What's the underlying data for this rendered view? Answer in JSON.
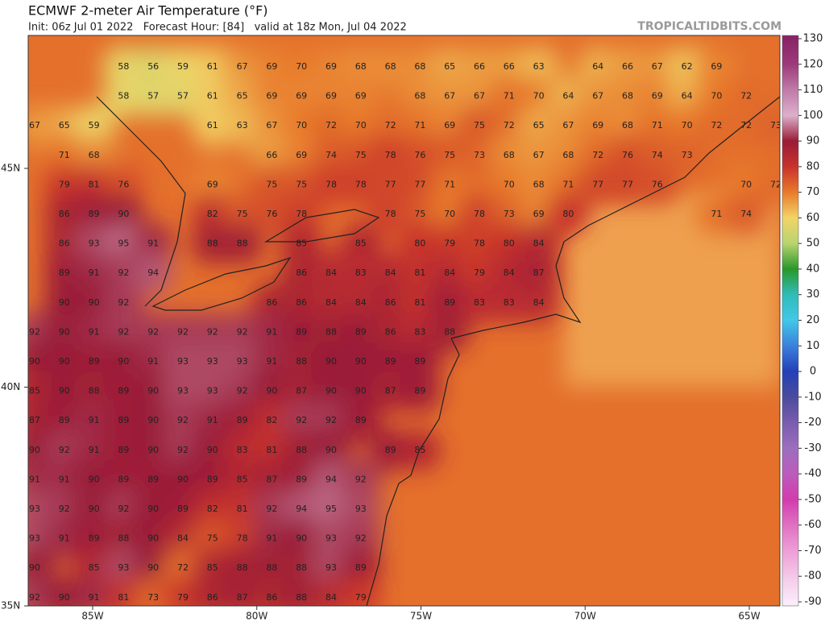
{
  "header": {
    "title": "ECMWF 2-meter Air Temperature (°F)",
    "subtitle": "Init: 06z Jul 01 2022   Forecast Hour: [84]   valid at 18z Mon, Jul 04 2022",
    "watermark": "TROPICALTIDBITS.COM"
  },
  "map": {
    "lat_labels": [
      {
        "value": 45,
        "label": "45N"
      },
      {
        "value": 40,
        "label": "40N"
      },
      {
        "value": 35,
        "label": "35N"
      }
    ],
    "lon_labels": [
      {
        "value": 85,
        "label": "85W"
      },
      {
        "value": 80,
        "label": "80W"
      },
      {
        "value": 75,
        "label": "75W"
      },
      {
        "value": 70,
        "label": "70W"
      },
      {
        "value": 65,
        "label": "65W"
      }
    ],
    "station_rows": [
      [
        null,
        null,
        null,
        58,
        56,
        59,
        61,
        67,
        69,
        70,
        69,
        68,
        68,
        68,
        65,
        66,
        66,
        63,
        null,
        64,
        66,
        67,
        62,
        69
      ],
      [
        null,
        null,
        null,
        58,
        57,
        57,
        61,
        65,
        69,
        69,
        69,
        69,
        null,
        68,
        67,
        67,
        71,
        70,
        64,
        67,
        68,
        69,
        64,
        70,
        72
      ],
      [
        67,
        65,
        59,
        null,
        null,
        null,
        61,
        63,
        67,
        70,
        72,
        70,
        72,
        71,
        69,
        75,
        72,
        65,
        67,
        69,
        68,
        71,
        70,
        72,
        72,
        73
      ],
      [
        null,
        71,
        68,
        null,
        null,
        null,
        null,
        null,
        66,
        69,
        74,
        75,
        78,
        76,
        75,
        73,
        68,
        67,
        68,
        72,
        76,
        74,
        73
      ],
      [
        null,
        79,
        81,
        76,
        null,
        null,
        69,
        null,
        75,
        75,
        78,
        78,
        77,
        77,
        71,
        null,
        70,
        68,
        71,
        77,
        77,
        76,
        null,
        null,
        70,
        72
      ],
      [
        null,
        86,
        89,
        90,
        null,
        null,
        82,
        75,
        76,
        78,
        null,
        null,
        78,
        75,
        70,
        78,
        73,
        69,
        80,
        null,
        null,
        null,
        null,
        71,
        74
      ],
      [
        null,
        86,
        93,
        95,
        91,
        null,
        88,
        88,
        null,
        85,
        null,
        85,
        null,
        80,
        79,
        78,
        80,
        84
      ],
      [
        null,
        89,
        91,
        92,
        94,
        null,
        null,
        null,
        null,
        86,
        84,
        83,
        84,
        81,
        84,
        79,
        84,
        87
      ],
      [
        null,
        90,
        90,
        92,
        null,
        null,
        null,
        null,
        86,
        86,
        84,
        84,
        86,
        81,
        89,
        83,
        83,
        84
      ],
      [
        92,
        90,
        91,
        92,
        92,
        92,
        92,
        92,
        91,
        89,
        88,
        89,
        86,
        83,
        88
      ],
      [
        90,
        90,
        89,
        90,
        91,
        93,
        93,
        93,
        91,
        88,
        90,
        90,
        89,
        89
      ],
      [
        85,
        90,
        88,
        89,
        90,
        93,
        93,
        92,
        90,
        87,
        90,
        90,
        87,
        89
      ],
      [
        87,
        89,
        91,
        89,
        90,
        92,
        91,
        89,
        82,
        92,
        92,
        89
      ],
      [
        90,
        92,
        91,
        89,
        90,
        92,
        90,
        83,
        81,
        88,
        90,
        null,
        89,
        85
      ],
      [
        91,
        91,
        90,
        89,
        89,
        90,
        89,
        85,
        87,
        89,
        94,
        92
      ],
      [
        93,
        92,
        90,
        92,
        90,
        89,
        82,
        81,
        92,
        94,
        95,
        93
      ],
      [
        93,
        91,
        89,
        88,
        90,
        84,
        75,
        78,
        91,
        90,
        93,
        92
      ],
      [
        90,
        null,
        85,
        93,
        90,
        72,
        85,
        88,
        88,
        88,
        93,
        89
      ],
      [
        92,
        90,
        91,
        81,
        73,
        79,
        86,
        87,
        86,
        88,
        84,
        79
      ]
    ],
    "colorbar": {
      "ticks": [
        130,
        120,
        110,
        100,
        90,
        80,
        70,
        60,
        50,
        40,
        30,
        20,
        10,
        0,
        -10,
        -20,
        -30,
        -40,
        -50,
        -60,
        -70,
        -80,
        -90
      ],
      "colors": [
        "#8a2468",
        "#9c3a7a",
        "#c07aa8",
        "#dcb0cc",
        "#9a1c38",
        "#c8322c",
        "#e87a2c",
        "#f2d466",
        "#b8d470",
        "#2a982a",
        "#30bcb8",
        "#40c8e8",
        "#3c80dc",
        "#2440b8",
        "#4a4c9c",
        "#7a5cae",
        "#9c6ebe",
        "#bc5cbc",
        "#d23cae",
        "#e070c2",
        "#ee9ed6",
        "#f4c8e8",
        "#faeafa"
      ]
    }
  }
}
